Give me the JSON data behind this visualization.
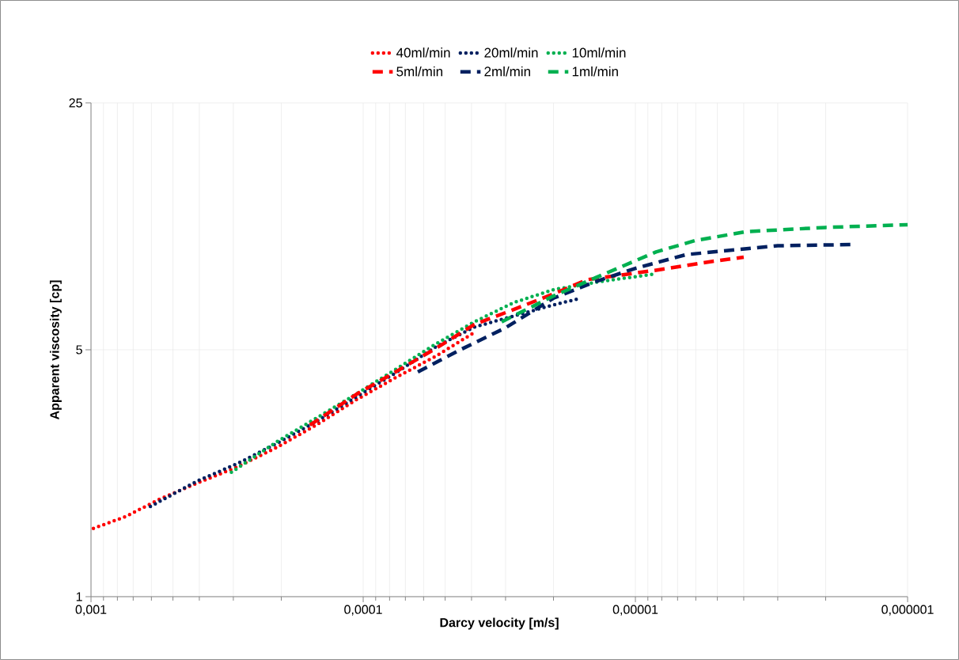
{
  "chart_data": {
    "type": "line",
    "xlabel": "Darcy velocity [m/s]",
    "ylabel": "Apparent viscosity  [cp]",
    "log": "xy",
    "grid": true,
    "legend": "top",
    "marker": "none",
    "xlim": [
      0.001,
      1e-06
    ],
    "xticks": [
      {
        "value": 0.001,
        "label": "0,001"
      },
      {
        "value": 0.0001,
        "label": "0,0001"
      },
      {
        "value": 1e-05,
        "label": "0,00001"
      },
      {
        "value": 1e-06,
        "label": "0,000001"
      }
    ],
    "ylim": [
      1,
      25
    ],
    "yticks": [
      1,
      5,
      25
    ],
    "series": [
      {
        "name": "40ml/min",
        "color": "#ff0000",
        "line_style": "dotted",
        "x": [
          0.00098,
          0.00074,
          0.000567,
          0.000405,
          0.00029,
          0.000207,
          0.000149,
          0.000106,
          7.6e-05,
          5.4e-05,
          3.9e-05
        ],
        "values": [
          1.56,
          1.69,
          1.88,
          2.1,
          2.33,
          2.65,
          3.06,
          3.61,
          4.17,
          4.8,
          5.6
        ]
      },
      {
        "name": "20ml/min",
        "color": "#002060",
        "line_style": "dotted",
        "x": [
          0.000605,
          0.000405,
          0.00029,
          0.000207,
          0.000149,
          0.000106,
          7.6e-05,
          5.4e-05,
          3.9e-05,
          2e-05,
          1.63e-05
        ],
        "values": [
          1.8,
          2.13,
          2.38,
          2.72,
          3.13,
          3.68,
          4.3,
          5.1,
          5.8,
          6.7,
          6.96
        ]
      },
      {
        "name": "10ml/min",
        "color": "#00b050",
        "line_style": "dotted",
        "x": [
          0.000305,
          0.000207,
          0.000149,
          0.000106,
          7.6e-05,
          5.4e-05,
          3.9e-05,
          2.8e-05,
          2e-05,
          1.35e-05,
          8.4e-06
        ],
        "values": [
          2.25,
          2.75,
          3.2,
          3.75,
          4.4,
          5.2,
          6.0,
          6.8,
          7.4,
          7.8,
          8.2
        ]
      },
      {
        "name": "5ml/min",
        "color": "#ff0000",
        "line_style": "dashed",
        "x": [
          0.000157,
          0.000106,
          7.6e-05,
          5.4e-05,
          3.9e-05,
          2.8e-05,
          2e-05,
          1.5e-05,
          8.4e-06,
          5.2e-06,
          4e-06
        ],
        "values": [
          3.06,
          3.74,
          4.33,
          5.05,
          5.9,
          6.5,
          7.2,
          7.9,
          8.4,
          8.9,
          9.14
        ]
      },
      {
        "name": "2ml/min",
        "color": "#002060",
        "line_style": "dashed",
        "x": [
          6.3e-05,
          4.4e-05,
          3e-05,
          2e-05,
          1.4e-05,
          1e-05,
          6.5e-06,
          3e-06,
          1.58e-06
        ],
        "values": [
          4.33,
          5.0,
          5.77,
          7.0,
          7.8,
          8.5,
          9.3,
          9.85,
          9.93
        ]
      },
      {
        "name": "1ml/min",
        "color": "#00b050",
        "line_style": "dashed",
        "x": [
          3.1e-05,
          2e-05,
          1.4e-05,
          8.4e-06,
          6e-06,
          3.9e-06,
          2e-06,
          1e-06
        ],
        "values": [
          6.0,
          7.1,
          8.0,
          9.46,
          10.2,
          10.8,
          11.1,
          11.3
        ]
      }
    ]
  }
}
